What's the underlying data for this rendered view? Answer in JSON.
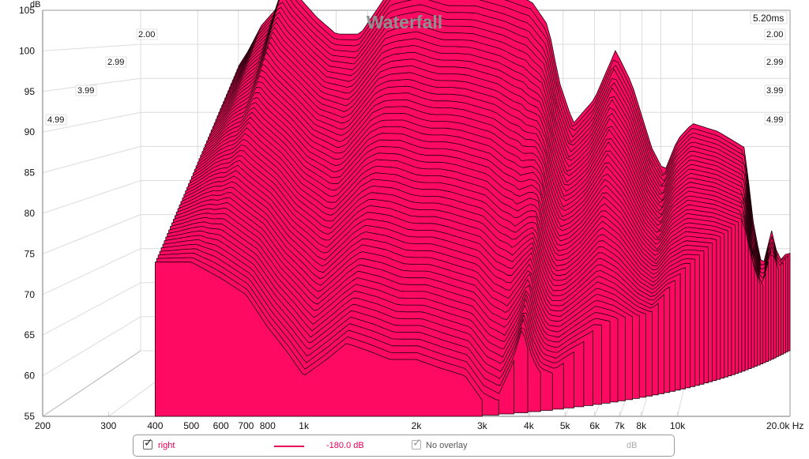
{
  "chart_data": {
    "type": "waterfall",
    "title": "Waterfall",
    "ylabel": "dB",
    "xlabel": "Hz",
    "ylim": [
      55,
      105
    ],
    "xlim": [
      200,
      20000
    ],
    "x_scale": "log",
    "y_ticks": [
      "105",
      "100",
      "95",
      "90",
      "85",
      "80",
      "75",
      "70",
      "65",
      "60",
      "55"
    ],
    "x_ticks": [
      {
        "f": 200,
        "label": "200"
      },
      {
        "f": 300,
        "label": "300"
      },
      {
        "f": 400,
        "label": "400"
      },
      {
        "f": 500,
        "label": "500"
      },
      {
        "f": 600,
        "label": "600"
      },
      {
        "f": 700,
        "label": "700"
      },
      {
        "f": 800,
        "label": "800"
      },
      {
        "f": 1000,
        "label": "1k"
      },
      {
        "f": 2000,
        "label": "2k"
      },
      {
        "f": 3000,
        "label": "3k"
      },
      {
        "f": 4000,
        "label": "4k"
      },
      {
        "f": 5000,
        "label": "5k"
      },
      {
        "f": 6000,
        "label": "6k"
      },
      {
        "f": 7000,
        "label": "7k"
      },
      {
        "f": 8000,
        "label": "8k"
      },
      {
        "f": 10000,
        "label": "10k"
      },
      {
        "f": 20000,
        "label": "20.0k Hz"
      }
    ],
    "time_ticks_ms": [
      "2.00",
      "2.99",
      "3.99",
      "4.99"
    ],
    "time_end_label": "5.20ms",
    "time_end_ms": 5.2,
    "fill_color": "#ff0a63",
    "series": [
      {
        "name": "right",
        "t_ms": 0,
        "points": [
          [
            400,
            90
          ],
          [
            430,
            92
          ],
          [
            470,
            95
          ],
          [
            520,
            97
          ],
          [
            560,
            101
          ],
          [
            600,
            99
          ],
          [
            700,
            96
          ],
          [
            800,
            94
          ],
          [
            950,
            94
          ],
          [
            1200,
            100
          ],
          [
            1500,
            101
          ],
          [
            1800,
            100
          ],
          [
            2200,
            100
          ],
          [
            2700,
            99
          ],
          [
            3200,
            98
          ],
          [
            3600,
            95
          ],
          [
            3900,
            88
          ],
          [
            4300,
            83
          ],
          [
            5000,
            86
          ],
          [
            5800,
            92
          ],
          [
            6500,
            88
          ],
          [
            7500,
            80
          ],
          [
            8200,
            77
          ],
          [
            9000,
            81
          ],
          [
            10000,
            83
          ],
          [
            12000,
            82
          ],
          [
            14500,
            80
          ],
          [
            15500,
            70
          ],
          [
            16500,
            65
          ],
          [
            17500,
            70
          ],
          [
            18500,
            66
          ],
          [
            19500,
            67
          ],
          [
            20000,
            67
          ]
        ]
      },
      {
        "name": "right",
        "t_ms": 5.2,
        "points": [
          [
            400,
            74
          ],
          [
            500,
            74
          ],
          [
            600,
            72
          ],
          [
            700,
            70
          ],
          [
            800,
            66
          ],
          [
            900,
            63
          ],
          [
            1000,
            60
          ],
          [
            1150,
            62
          ],
          [
            1300,
            64
          ],
          [
            1500,
            63
          ],
          [
            1700,
            62
          ],
          [
            2000,
            62
          ],
          [
            2300,
            61
          ],
          [
            2700,
            60
          ],
          [
            3000,
            57
          ],
          [
            3300,
            56
          ],
          [
            3600,
            60
          ],
          [
            3800,
            64
          ],
          [
            4000,
            60
          ],
          [
            4200,
            58
          ],
          [
            4600,
            57
          ],
          [
            5000,
            58
          ],
          [
            6000,
            59
          ],
          [
            8000,
            60
          ],
          [
            12000,
            61
          ],
          [
            20000,
            61
          ]
        ]
      }
    ]
  },
  "legend": {
    "series_name": "right",
    "series_checked": true,
    "series_color": "#e6005a",
    "level": "-180.0 dB",
    "overlay_label": "No overlay",
    "overlay_checked": true,
    "unit": "dB"
  }
}
